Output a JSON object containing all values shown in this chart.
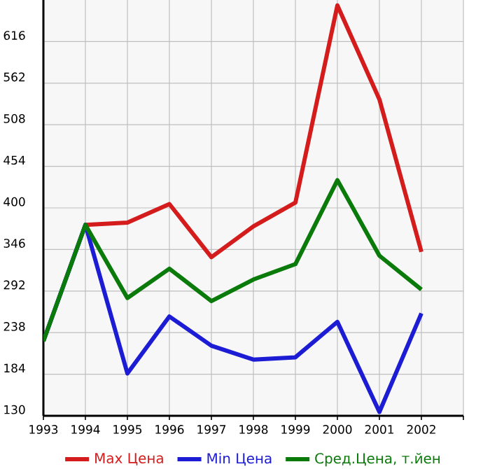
{
  "chart_data": {
    "type": "line",
    "x": [
      1993,
      1994,
      1995,
      1996,
      1997,
      1998,
      1999,
      2000,
      2001,
      2002
    ],
    "series": [
      {
        "name": "Max Цена",
        "color": "#d41c1c",
        "values": [
          null,
          378,
          381,
          405,
          336,
          376,
          407,
          663,
          541,
          343
        ]
      },
      {
        "name": "Min Цена",
        "color": "#1c1cd4",
        "values": [
          227,
          378,
          185,
          259,
          221,
          203,
          206,
          252,
          135,
          263
        ]
      },
      {
        "name": "Сред.Цена, т.йен",
        "color": "#0a7a0a",
        "values": [
          227,
          378,
          283,
          321,
          279,
          307,
          327,
          436,
          338,
          294
        ]
      }
    ],
    "xlim": [
      1993,
      2003
    ],
    "xticks": [
      1993,
      1994,
      1995,
      1996,
      1997,
      1998,
      1999,
      2000,
      2001,
      2002,
      {
        "value": 2003,
        "label": null
      }
    ],
    "ylim": [
      130,
      670
    ],
    "yticks": [
      130,
      184,
      238,
      292,
      346,
      400,
      454,
      508,
      562,
      616
    ],
    "grid": true,
    "legend": "bottom",
    "marker": "none",
    "line_style": "solid"
  }
}
